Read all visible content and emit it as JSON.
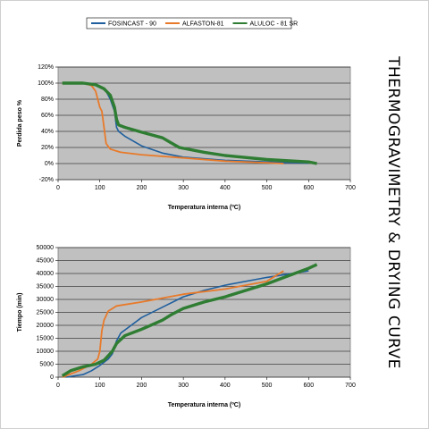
{
  "title": "THERMOGRAVIMETRY & DRYING CURVE",
  "chart_data": [
    {
      "type": "line",
      "x_label": "Temperatura interna (ºC)",
      "y_label": "Perdida peso %",
      "xlim": [
        0,
        700
      ],
      "xticks": [
        0,
        100,
        200,
        300,
        400,
        500,
        600,
        700
      ],
      "ylim": [
        -20,
        120
      ],
      "yticks": [
        {
          "value": -20,
          "label": "-20%"
        },
        {
          "value": 0,
          "label": "0%"
        },
        {
          "value": 20,
          "label": "20%"
        },
        {
          "value": 40,
          "label": "40%"
        },
        {
          "value": 60,
          "label": "60%"
        },
        {
          "value": 80,
          "label": "80%"
        },
        {
          "value": 100,
          "label": "100%"
        },
        {
          "value": 120,
          "label": "120%"
        }
      ],
      "grid": true,
      "legend": "top",
      "series": [
        {
          "name": "FOSINCAST - 90",
          "color": "#1f5f9e",
          "x": [
            10,
            50,
            80,
            100,
            115,
            125,
            135,
            140,
            145,
            160,
            200,
            250,
            300,
            400,
            500,
            600
          ],
          "values": [
            100,
            100,
            99,
            96,
            90,
            80,
            65,
            45,
            40,
            34,
            22,
            13,
            8,
            4,
            2,
            0.5
          ]
        },
        {
          "name": "ALFASTON-81",
          "color": "#e87a2a",
          "x": [
            10,
            60,
            80,
            90,
            95,
            100,
            105,
            110,
            115,
            125,
            150,
            200,
            300,
            400,
            500,
            540
          ],
          "values": [
            100,
            100,
            97,
            90,
            80,
            70,
            65,
            45,
            25,
            18,
            14,
            11,
            7,
            3,
            1,
            0
          ]
        },
        {
          "name": "ALULOC - 81 SR",
          "color": "#2f7d33",
          "x": [
            10,
            60,
            90,
            110,
            125,
            135,
            140,
            145,
            160,
            200,
            250,
            270,
            290,
            350,
            400,
            500,
            600,
            620
          ],
          "values": [
            100,
            100,
            98,
            93,
            85,
            70,
            55,
            48,
            45,
            39,
            32,
            26,
            20,
            14,
            10,
            5,
            2,
            0
          ]
        }
      ]
    },
    {
      "type": "line",
      "x_label": "Temperatura interna (ºC)",
      "y_label": "Tiempo (min)",
      "xlim": [
        0,
        700
      ],
      "xticks": [
        0,
        100,
        200,
        300,
        400,
        500,
        600,
        700
      ],
      "ylim": [
        0,
        50000
      ],
      "yticks": [
        0,
        5000,
        10000,
        15000,
        20000,
        25000,
        30000,
        35000,
        40000,
        45000,
        50000
      ],
      "grid": true,
      "series": [
        {
          "color": "#1f5f9e",
          "x": [
            20,
            60,
            80,
            100,
            120,
            130,
            140,
            150,
            175,
            200,
            250,
            300,
            350,
            400,
            500,
            600
          ],
          "values": [
            0,
            1000,
            2500,
            4500,
            7000,
            9000,
            14000,
            17000,
            20000,
            23000,
            27000,
            31000,
            33500,
            35500,
            38500,
            41000
          ]
        },
        {
          "color": "#e87a2a",
          "x": [
            10,
            50,
            80,
            95,
            100,
            105,
            110,
            120,
            140,
            200,
            300,
            400,
            500,
            540
          ],
          "values": [
            0,
            2500,
            5000,
            7000,
            10000,
            18000,
            22000,
            25500,
            27500,
            29000,
            32000,
            34000,
            37000,
            41000
          ]
        },
        {
          "color": "#2f7d33",
          "x": [
            10,
            30,
            60,
            90,
            110,
            130,
            140,
            160,
            200,
            250,
            270,
            300,
            350,
            400,
            450,
            500,
            550,
            600,
            620
          ],
          "values": [
            500,
            2500,
            4000,
            5000,
            6500,
            10000,
            13000,
            16000,
            18500,
            22000,
            24000,
            26500,
            29000,
            31000,
            33500,
            36000,
            39000,
            42000,
            43500
          ]
        }
      ]
    }
  ]
}
